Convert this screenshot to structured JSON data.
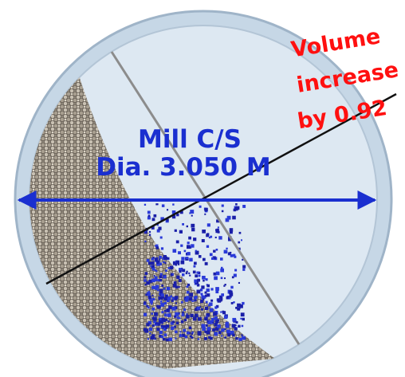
{
  "labels": {
    "title": "Mill C/S",
    "diameter": "Dia. 3.050 M",
    "note": [
      "Volume",
      "increase",
      "by 0.92"
    ]
  }
}
